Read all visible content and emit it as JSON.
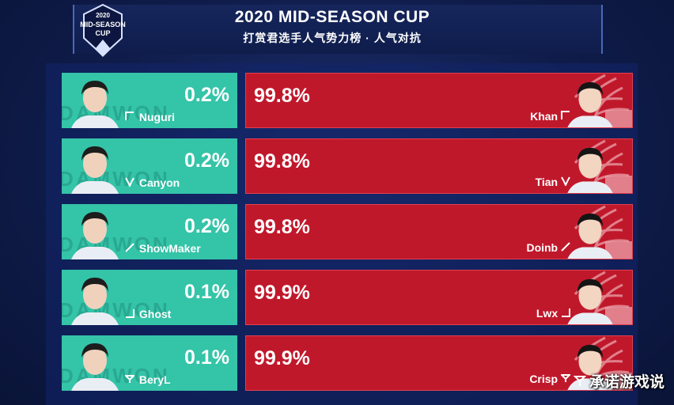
{
  "header": {
    "logo_text_year": "2020",
    "logo_text_line1": "MID-SEASON",
    "logo_text_line2": "CUP",
    "title": "2020 MID-SEASON CUP",
    "subtitle": "打赏君选手人气势力榜 · 人气对抗"
  },
  "left_team": {
    "watermark": "DAMWON",
    "color": "#34c4a8"
  },
  "right_team": {
    "color": "#c0182b"
  },
  "matchups": [
    {
      "left_player": "Nuguri",
      "left_role": "top-icon",
      "left_pct": "0.2%",
      "right_player": "Khan",
      "right_role": "top-icon",
      "right_pct": "99.8%"
    },
    {
      "left_player": "Canyon",
      "left_role": "jungle-icon",
      "left_pct": "0.2%",
      "right_player": "Tian",
      "right_role": "jungle-icon",
      "right_pct": "99.8%"
    },
    {
      "left_player": "ShowMaker",
      "left_role": "mid-icon",
      "left_pct": "0.2%",
      "right_player": "Doinb",
      "right_role": "mid-icon",
      "right_pct": "99.8%"
    },
    {
      "left_player": "Ghost",
      "left_role": "bot-icon",
      "left_pct": "0.1%",
      "right_player": "Lwx",
      "right_role": "bot-icon",
      "right_pct": "99.9%"
    },
    {
      "left_player": "BeryL",
      "left_role": "support-icon",
      "left_pct": "0.1%",
      "right_player": "Crisp",
      "right_role": "support-icon",
      "right_pct": "99.9%"
    }
  ],
  "credit": {
    "text": "承诺游戏说"
  }
}
